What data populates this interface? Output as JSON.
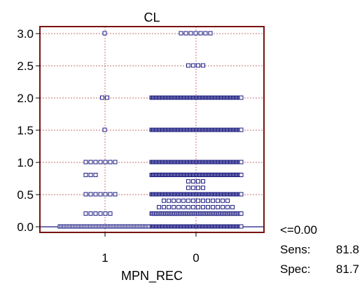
{
  "chart_data": {
    "type": "scatter",
    "title": "CL",
    "xlabel": "MPN_REC",
    "ylabel": "",
    "categories": [
      "1",
      "0"
    ],
    "ylim": [
      0,
      3.1
    ],
    "yticks": [
      "0.0",
      "0.5",
      "1.0",
      "1.5",
      "2.0",
      "2.5",
      "3.0"
    ],
    "grid": true,
    "cutoff": 0.0,
    "groups": [
      {
        "category": "1",
        "rows": [
          {
            "y": 3.0,
            "count": 1
          },
          {
            "y": 2.0,
            "count": 2
          },
          {
            "y": 1.5,
            "count": 1
          },
          {
            "y": 1.0,
            "count": 7
          },
          {
            "y": 0.8,
            "count": 3
          },
          {
            "y": 0.5,
            "count": 7
          },
          {
            "y": 0.2,
            "count": 6
          },
          {
            "y": 0.0,
            "count": 60
          }
        ]
      },
      {
        "category": "0",
        "rows": [
          {
            "y": 3.0,
            "count": 7
          },
          {
            "y": 2.5,
            "count": 4
          },
          {
            "y": 2.0,
            "count": 100
          },
          {
            "y": 1.5,
            "count": 100
          },
          {
            "y": 1.0,
            "count": 100
          },
          {
            "y": 0.8,
            "count": 100
          },
          {
            "y": 0.7,
            "count": 4
          },
          {
            "y": 0.6,
            "count": 4
          },
          {
            "y": 0.5,
            "count": 100
          },
          {
            "y": 0.4,
            "count": 14
          },
          {
            "y": 0.3,
            "count": 16
          },
          {
            "y": 0.2,
            "count": 80
          },
          {
            "y": 0.0,
            "count": 100
          }
        ]
      }
    ],
    "colors": {
      "frame": "#7a1010",
      "marker": "#1a1a80",
      "grid": "#b04040",
      "cutoff_line": "#1a1a80"
    }
  },
  "stats": {
    "criterion": "<=0.00",
    "sens_label": "Sens:",
    "sens_value": "81.8",
    "spec_label": "Spec:",
    "spec_value": "81.7"
  }
}
